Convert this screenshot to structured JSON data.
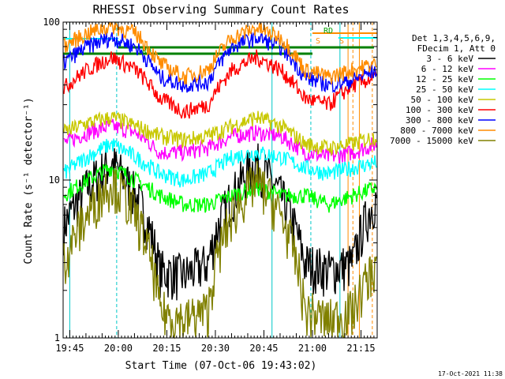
{
  "chart_data": {
    "type": "line",
    "title": "RHESSI Observing Summary Count Rates",
    "xlabel": "Start Time (07-Oct-06 19:43:02)",
    "ylabel": "Count Rate (s⁻¹ detector⁻¹)",
    "y_scale": "log",
    "ylim": [
      1,
      100
    ],
    "xlim_minutes": [
      -2.05,
      95.0
    ],
    "x_ticks": [
      {
        "label": "19:45",
        "value": 0
      },
      {
        "label": "20:00",
        "value": 15
      },
      {
        "label": "20:15",
        "value": 30
      },
      {
        "label": "20:30",
        "value": 45
      },
      {
        "label": "20:45",
        "value": 60
      },
      {
        "label": "21:00",
        "value": 75
      },
      {
        "label": "21:15",
        "value": 90
      }
    ],
    "y_ticks": [
      {
        "label": "1",
        "value": 1
      },
      {
        "label": "10",
        "value": 10
      },
      {
        "label": "100",
        "value": 100
      }
    ],
    "legend_header": [
      "Det 1,3,4,5,6,9,",
      "FDecim 1, Att 0"
    ],
    "legend_position": "right",
    "annotations": [
      {
        "text": "N",
        "color": "#00c8c8"
      },
      {
        "text": "RD",
        "color": "#00a000"
      },
      {
        "text": "RD",
        "color": "#00a000"
      },
      {
        "text": "S",
        "color": "#ff8c00"
      },
      {
        "text": "S",
        "color": "#ff8c00"
      }
    ],
    "series": [
      {
        "name": "3 - 6 keV",
        "color": "#000000",
        "values": [
          5,
          9,
          13,
          8,
          2.7,
          2.5,
          3,
          8,
          13,
          8,
          3,
          2.7,
          3,
          8
        ]
      },
      {
        "name": "6 - 12 keV",
        "color": "#ff00ff",
        "values": [
          17,
          20,
          22,
          20,
          15,
          15,
          16,
          19,
          20,
          19,
          15,
          14,
          15,
          17
        ]
      },
      {
        "name": "12 - 25 keV",
        "color": "#00ff00",
        "values": [
          8,
          10,
          12,
          10,
          8,
          7,
          7,
          8,
          9,
          8,
          8,
          7,
          8,
          9
        ]
      },
      {
        "name": "25 - 50 keV",
        "color": "#00ffff",
        "values": [
          11,
          14,
          17,
          14,
          11,
          10,
          11,
          14,
          15,
          14,
          12,
          11,
          12,
          13
        ]
      },
      {
        "name": "50 - 100 keV",
        "color": "#c8c800",
        "values": [
          20,
          23,
          25,
          22,
          19,
          18,
          19,
          22,
          25,
          22,
          17,
          16,
          17,
          19
        ]
      },
      {
        "name": "100 - 300 keV",
        "color": "#ff0000",
        "values": [
          38,
          50,
          60,
          50,
          33,
          27,
          30,
          50,
          60,
          50,
          33,
          30,
          40,
          45
        ]
      },
      {
        "name": "300 - 800 keV",
        "color": "#0000ff",
        "values": [
          55,
          70,
          80,
          70,
          45,
          40,
          42,
          70,
          80,
          70,
          45,
          40,
          43,
          50
        ]
      },
      {
        "name": "800 - 7000 keV",
        "color": "#ff8c00",
        "values": [
          70,
          85,
          95,
          85,
          55,
          45,
          50,
          80,
          92,
          80,
          50,
          45,
          50,
          55
        ]
      },
      {
        "name": "7000 - 15000 keV",
        "color": "#808000",
        "values": [
          3,
          6,
          10,
          6,
          1.5,
          1.3,
          1.5,
          6,
          10,
          6,
          1.5,
          1.3,
          1.5,
          3
        ]
      }
    ],
    "grid": false
  },
  "footer": {
    "timestamp": "17-Oct-2021 11:38"
  }
}
